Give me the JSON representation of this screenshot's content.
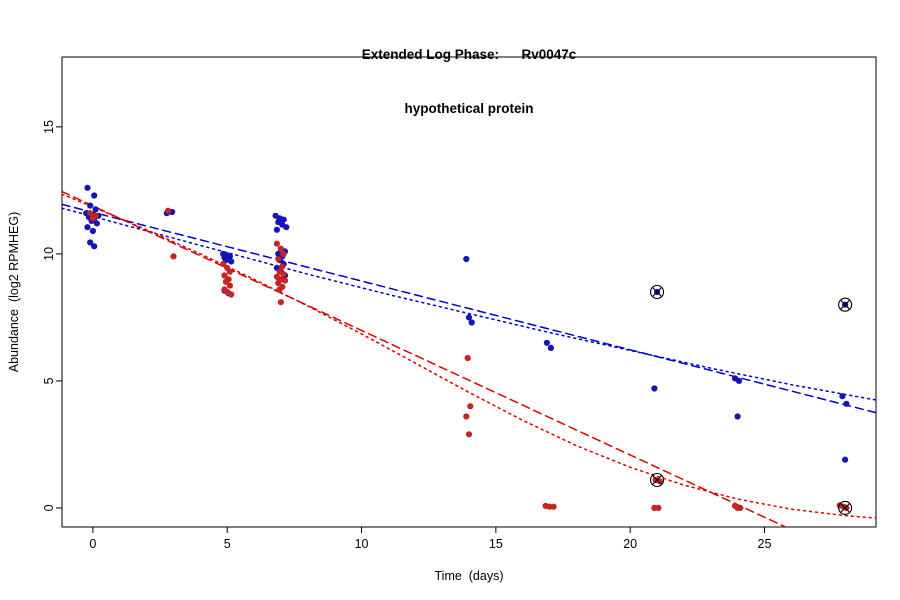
{
  "chart_data": {
    "type": "scatter",
    "title": "Extended Log Phase:      Rv0047c",
    "subtitle": "hypothetical protein",
    "xlabel": "Time  (days)",
    "ylabel": "Abundance  (log2 RPMHEG)",
    "xlim": [
      -1.15,
      29.15
    ],
    "ylim": [
      -0.75,
      17.75
    ],
    "xticks": [
      0,
      5,
      10,
      15,
      20,
      25
    ],
    "yticks": [
      0,
      5,
      10,
      15
    ],
    "grid": false,
    "legend": "none",
    "series": [
      {
        "name": "blue",
        "color": "#1515B5",
        "points": [
          [
            -0.2,
            12.6
          ],
          [
            0.05,
            12.3
          ],
          [
            -0.1,
            11.9
          ],
          [
            0.1,
            11.75
          ],
          [
            -0.25,
            11.6
          ],
          [
            0,
            11.55
          ],
          [
            0.2,
            11.5
          ],
          [
            -0.15,
            11.45
          ],
          [
            0.05,
            11.4
          ],
          [
            -0.05,
            11.3
          ],
          [
            0.15,
            11.2
          ],
          [
            -0.2,
            11.05
          ],
          [
            0,
            10.9
          ],
          [
            -0.1,
            10.45
          ],
          [
            0.05,
            10.3
          ],
          [
            2.75,
            11.6
          ],
          [
            2.95,
            11.65
          ],
          [
            4.85,
            10
          ],
          [
            5,
            9.95
          ],
          [
            5.1,
            9.9
          ],
          [
            4.9,
            9.85
          ],
          [
            5.05,
            9.8
          ],
          [
            4.95,
            9.75
          ],
          [
            5.15,
            9.7
          ],
          [
            4.9,
            8.55
          ],
          [
            5.05,
            8.45
          ],
          [
            6.8,
            11.5
          ],
          [
            6.95,
            11.4
          ],
          [
            7.1,
            11.35
          ],
          [
            6.9,
            11.25
          ],
          [
            7.05,
            11.15
          ],
          [
            7.2,
            11.05
          ],
          [
            6.85,
            10.95
          ],
          [
            7,
            10.2
          ],
          [
            7.15,
            10.1
          ],
          [
            6.9,
            10
          ],
          [
            7.05,
            9.9
          ],
          [
            6.95,
            9.75
          ],
          [
            7.1,
            9.6
          ],
          [
            6.85,
            9.45
          ],
          [
            7,
            9.3
          ],
          [
            7.15,
            9.15
          ],
          [
            6.95,
            9
          ],
          [
            13.9,
            9.8
          ],
          [
            14,
            7.5
          ],
          [
            14.1,
            7.3
          ],
          [
            16.9,
            6.5
          ],
          [
            17.05,
            6.3
          ],
          [
            21,
            8.5
          ],
          [
            20.9,
            4.7
          ],
          [
            23.9,
            5.1
          ],
          [
            24.05,
            5
          ],
          [
            24,
            3.6
          ],
          [
            28,
            8
          ],
          [
            27.9,
            4.4
          ],
          [
            28.05,
            4.1
          ],
          [
            28,
            1.9
          ]
        ]
      },
      {
        "name": "red",
        "color": "#C62323",
        "points": [
          [
            -0.1,
            11.6
          ],
          [
            0.1,
            11.5
          ],
          [
            0,
            11.4
          ],
          [
            2.8,
            11.7
          ],
          [
            3,
            9.9
          ],
          [
            4.85,
            9.6
          ],
          [
            5,
            9.45
          ],
          [
            5.1,
            9.3
          ],
          [
            4.9,
            9.15
          ],
          [
            5.05,
            9
          ],
          [
            4.95,
            8.9
          ],
          [
            5.1,
            8.75
          ],
          [
            4.9,
            8.6
          ],
          [
            5,
            8.5
          ],
          [
            5.15,
            8.4
          ],
          [
            6.85,
            10.4
          ],
          [
            7,
            10.2
          ],
          [
            7.1,
            10
          ],
          [
            6.9,
            9.8
          ],
          [
            7.05,
            9.5
          ],
          [
            6.95,
            9.3
          ],
          [
            7.1,
            9.2
          ],
          [
            6.85,
            9.1
          ],
          [
            7,
            9
          ],
          [
            7.15,
            8.95
          ],
          [
            6.9,
            8.85
          ],
          [
            7.05,
            8.7
          ],
          [
            6.95,
            8.6
          ],
          [
            7,
            8.1
          ],
          [
            13.95,
            5.9
          ],
          [
            14.05,
            4
          ],
          [
            13.9,
            3.6
          ],
          [
            14,
            2.9
          ],
          [
            16.85,
            0.08
          ],
          [
            17,
            0.05
          ],
          [
            17.15,
            0.05
          ],
          [
            20.95,
            1.1
          ],
          [
            21.1,
            1.05
          ],
          [
            20.9,
            0
          ],
          [
            21.05,
            0
          ],
          [
            23.9,
            0.08
          ],
          [
            24,
            0
          ],
          [
            24.1,
            0
          ],
          [
            27.8,
            0.1
          ],
          [
            27.95,
            0.05
          ],
          [
            28.05,
            0
          ]
        ]
      }
    ],
    "fit_lines": [
      {
        "name": "blue-linear",
        "color": "#0000CC",
        "style": "dashed",
        "points": [
          [
            -1.15,
            11.95
          ],
          [
            29.15,
            3.75
          ]
        ]
      },
      {
        "name": "blue-curve",
        "color": "#0000CC",
        "style": "dotted",
        "points": [
          [
            -1.15,
            11.8
          ],
          [
            2,
            10.9
          ],
          [
            5,
            10.05
          ],
          [
            8,
            9.2
          ],
          [
            11,
            8.4
          ],
          [
            14,
            7.65
          ],
          [
            17,
            6.9
          ],
          [
            20,
            6.2
          ],
          [
            23,
            5.5
          ],
          [
            26,
            4.85
          ],
          [
            29.15,
            4.25
          ]
        ]
      },
      {
        "name": "red-linear",
        "color": "#DD0000",
        "style": "dashed",
        "points": [
          [
            -1.15,
            12.45
          ],
          [
            29.15,
            -2.4
          ]
        ]
      },
      {
        "name": "red-curve",
        "color": "#DD0000",
        "style": "dotted",
        "points": [
          [
            -1.15,
            12.35
          ],
          [
            0,
            11.85
          ],
          [
            2,
            10.95
          ],
          [
            4,
            10
          ],
          [
            6,
            9
          ],
          [
            8,
            7.95
          ],
          [
            10,
            6.85
          ],
          [
            12,
            5.7
          ],
          [
            14,
            4.55
          ],
          [
            16,
            3.45
          ],
          [
            18,
            2.45
          ],
          [
            20,
            1.6
          ],
          [
            22,
            0.9
          ],
          [
            24,
            0.35
          ],
          [
            26,
            -0.05
          ],
          [
            28,
            -0.3
          ],
          [
            29.15,
            -0.4
          ]
        ]
      }
    ],
    "flagged_points": [
      {
        "x": 21,
        "y": 8.5,
        "series": "blue"
      },
      {
        "x": 28,
        "y": 8,
        "series": "blue"
      },
      {
        "x": 21,
        "y": 1.1,
        "series": "red"
      },
      {
        "x": 28,
        "y": 0,
        "series": "red"
      }
    ]
  }
}
